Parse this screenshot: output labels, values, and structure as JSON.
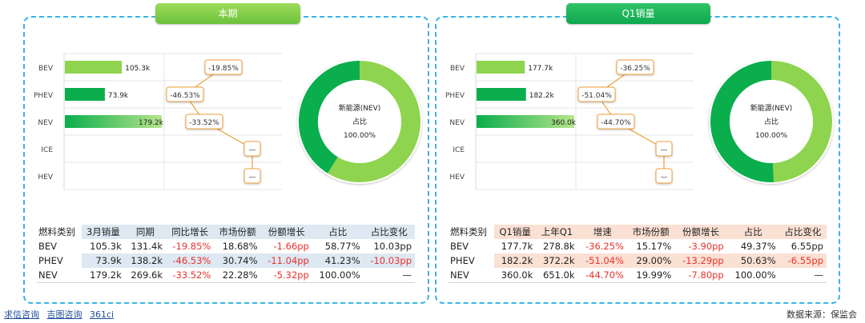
{
  "panels": [
    {
      "title": "本期",
      "chart_data": {
        "type": "bar",
        "categories": [
          "BEV",
          "PHEV",
          "NEV",
          "ICE",
          "HEV"
        ],
        "values": [
          105.3,
          73.9,
          179.2,
          null,
          null
        ],
        "value_labels": [
          "105.3k",
          "73.9k",
          "179.2k",
          "",
          ""
        ],
        "growth_labels": [
          "-19.85%",
          "-46.53%",
          "-33.52%",
          "—",
          "—"
        ],
        "growth_values": [
          -19.85,
          -46.53,
          -33.52,
          null,
          null
        ],
        "donut": {
          "center_lines": [
            "新能源(NEV)",
            "占比",
            "100.00%"
          ],
          "slices": [
            {
              "label": "BEV",
              "value": 58.77
            },
            {
              "label": "PHEV",
              "value": 41.23
            }
          ]
        }
      },
      "table": {
        "headers": [
          "燃料类别",
          "3月销量",
          "同期",
          "同比增长",
          "市场份额",
          "份额增长",
          "占比",
          "占比变化"
        ],
        "rows": [
          [
            "BEV",
            "105.3k",
            "131.4k",
            "-19.85%",
            "18.68%",
            "-1.66pp",
            "58.77%",
            "10.03pp"
          ],
          [
            "PHEV",
            "73.9k",
            "138.2k",
            "-46.53%",
            "30.74%",
            "-11.04pp",
            "41.23%",
            "-10.03pp"
          ],
          [
            "NEV",
            "179.2k",
            "269.6k",
            "-33.52%",
            "22.28%",
            "-5.32pp",
            "100.00%",
            "—"
          ]
        ]
      }
    },
    {
      "title": "Q1销量",
      "chart_data": {
        "type": "bar",
        "categories": [
          "BEV",
          "PHEV",
          "NEV",
          "ICE",
          "HEV"
        ],
        "values": [
          177.7,
          182.2,
          360.0,
          null,
          null
        ],
        "value_labels": [
          "177.7k",
          "182.2k",
          "360.0k",
          "",
          ""
        ],
        "growth_labels": [
          "-36.25%",
          "-51.04%",
          "-44.70%",
          "—",
          "—"
        ],
        "growth_values": [
          -36.25,
          -51.04,
          -44.7,
          null,
          null
        ],
        "donut": {
          "center_lines": [
            "新能源(NEV)",
            "占比",
            "100.00%"
          ],
          "slices": [
            {
              "label": "BEV",
              "value": 49.37
            },
            {
              "label": "PHEV",
              "value": 50.63
            }
          ]
        }
      },
      "table": {
        "headers": [
          "燃料类别",
          "Q1销量",
          "上年Q1",
          "增速",
          "市场份额",
          "份额增长",
          "占比",
          "占比变化"
        ],
        "rows": [
          [
            "BEV",
            "177.7k",
            "278.8k",
            "-36.25%",
            "15.17%",
            "-3.90pp",
            "49.37%",
            "6.55pp"
          ],
          [
            "PHEV",
            "182.2k",
            "372.2k",
            "-51.04%",
            "29.00%",
            "-13.29pp",
            "50.63%",
            "-6.55pp"
          ],
          [
            "NEV",
            "360.0k",
            "651.0k",
            "-44.70%",
            "19.99%",
            "-7.80pp",
            "100.00%",
            "—"
          ]
        ]
      }
    }
  ],
  "footer": {
    "links": [
      "求信咨询",
      "吉图咨询",
      "361ci"
    ],
    "source": "数据来源：保监会"
  },
  "colors": {
    "bev_bar": "#8fd44e",
    "phev_bar": "#0aae4d",
    "nev_bar_start": "#0aae4d",
    "nev_bar_end": "#a8e07a",
    "donut_bev": "#8fd44e",
    "donut_phev": "#0aae4d",
    "callout_border": "#f0a23c",
    "negative": "#e8332c"
  }
}
